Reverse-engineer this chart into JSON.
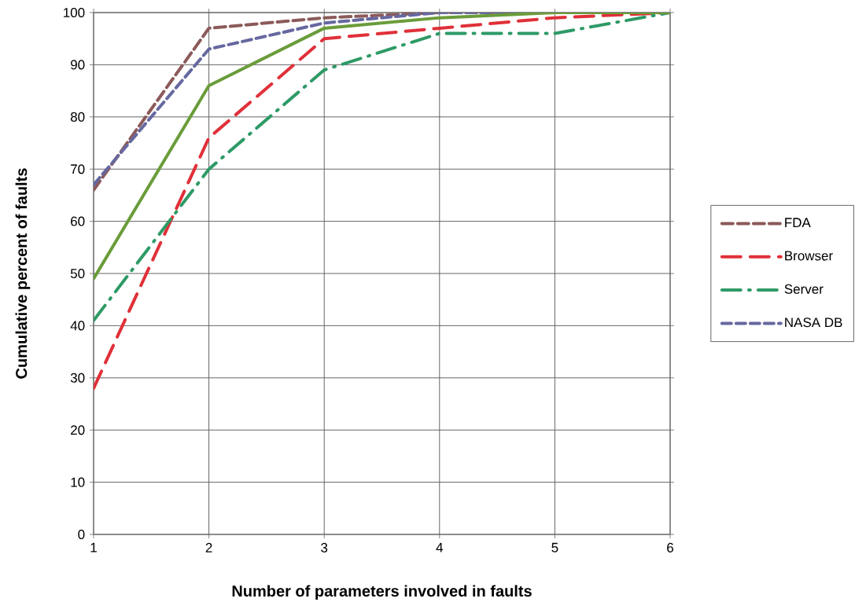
{
  "chart_data": {
    "type": "line",
    "xlabel": "Number of parameters involved in faults",
    "ylabel": "Cumulative percent of faults",
    "x": [
      1,
      2,
      3,
      4,
      5,
      6
    ],
    "series": [
      {
        "name": "FDA",
        "color": "#8b5a5a",
        "line_style": "dashed",
        "values": [
          66,
          97,
          99,
          100,
          100,
          100
        ]
      },
      {
        "name": "Browser",
        "color": "#e03039",
        "line_style": "dashed",
        "values": [
          28,
          76,
          95,
          97,
          99,
          100
        ]
      },
      {
        "name": "Server",
        "color": "#2e9a66",
        "line_style": "dashed",
        "values": [
          41,
          70,
          89,
          96,
          96,
          100
        ]
      },
      {
        "name": "NASA DB",
        "color": "#6668a0",
        "line_style": "dashed",
        "values": [
          67,
          93,
          98,
          100,
          100,
          100
        ]
      },
      {
        "color": "#6a9c3a",
        "line_style": "solid",
        "values": [
          49,
          86,
          97,
          99,
          100,
          100
        ]
      }
    ],
    "xlim": [
      1,
      6
    ],
    "xticks": [
      1,
      2,
      3,
      4,
      5,
      6
    ],
    "ylim": [
      0,
      100
    ],
    "yticks": [
      0,
      10,
      20,
      30,
      40,
      50,
      60,
      70,
      80,
      90,
      100
    ],
    "grid": true,
    "legend": "right",
    "marker": "none"
  }
}
